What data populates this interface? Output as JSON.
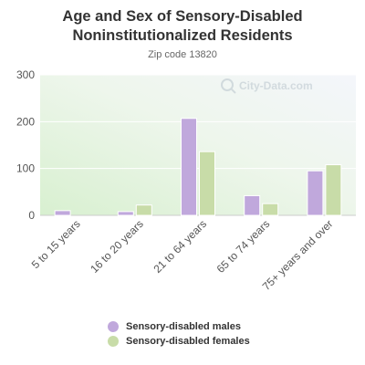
{
  "chart_data": {
    "type": "bar",
    "title": "Age and Sex of Sensory-Disabled Noninstitutionalized Residents",
    "subtitle": "Zip code 13820",
    "categories": [
      "5 to 15 years",
      "16 to 20 years",
      "21 to 64 years",
      "65 to 74 years",
      "75+ years and over"
    ],
    "series": [
      {
        "name": "Sensory-disabled males",
        "values": [
          10,
          8,
          207,
          42,
          95
        ],
        "color": "#c0a8dc"
      },
      {
        "name": "Sensory-disabled females",
        "values": [
          0,
          22,
          136,
          25,
          108
        ],
        "color": "#c8dca8"
      }
    ],
    "ylim": [
      0,
      300
    ],
    "yticks": [
      "0",
      "100",
      "200",
      "300"
    ],
    "grid": true,
    "legend_position": "bottom",
    "watermark": "City-Data.com"
  }
}
